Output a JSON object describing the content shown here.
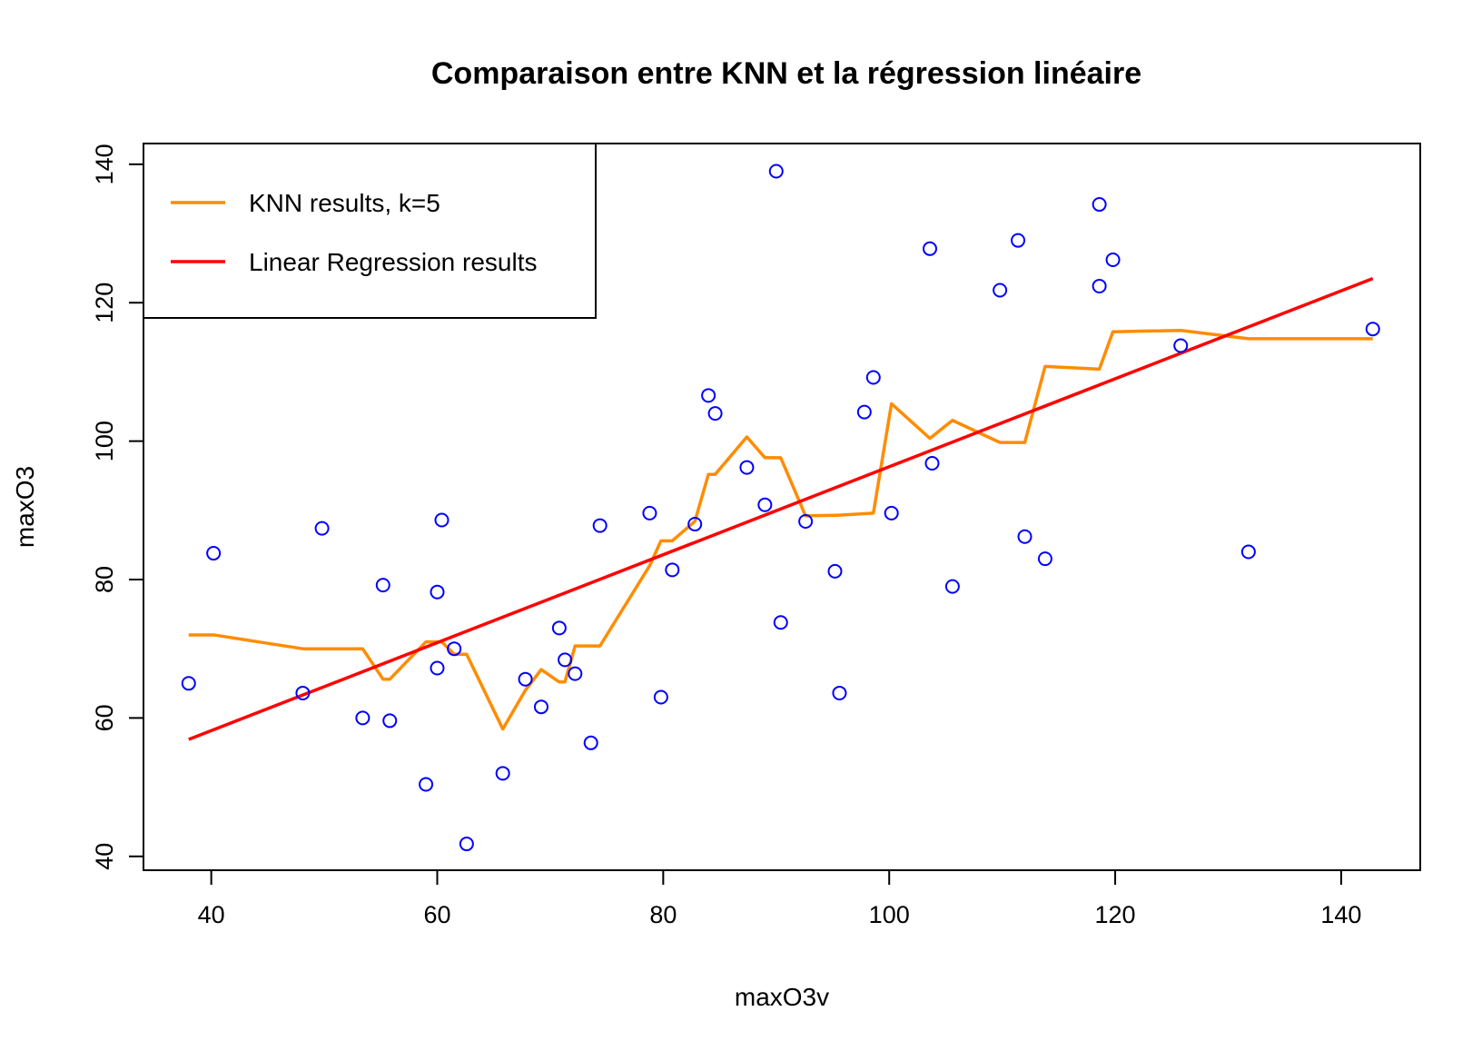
{
  "chart_data": {
    "type": "scatter",
    "title": "Comparaison entre KNN et la régression linéaire",
    "xlabel": "maxO3v",
    "ylabel": "maxO3",
    "xlim": [
      34,
      147
    ],
    "ylim": [
      38,
      143
    ],
    "xticks": [
      40,
      60,
      80,
      100,
      120,
      140
    ],
    "yticks": [
      40,
      60,
      80,
      100,
      120,
      140
    ],
    "grid": false,
    "legend_position": "top-left",
    "legend": [
      {
        "label": "KNN results, k=5",
        "color": "#ff8c00"
      },
      {
        "label": "Linear Regression results",
        "color": "#ff0000"
      }
    ],
    "colors": {
      "points": "#0000ff",
      "knn": "#ff8c00",
      "regression": "#ff0000",
      "axes": "#000000"
    },
    "points": [
      {
        "x": 38.0,
        "y": 65.0
      },
      {
        "x": 40.2,
        "y": 83.8
      },
      {
        "x": 48.1,
        "y": 63.6
      },
      {
        "x": 49.8,
        "y": 87.4
      },
      {
        "x": 53.4,
        "y": 60.0
      },
      {
        "x": 55.2,
        "y": 79.2
      },
      {
        "x": 55.8,
        "y": 59.6
      },
      {
        "x": 59.0,
        "y": 50.4
      },
      {
        "x": 60.0,
        "y": 78.2
      },
      {
        "x": 60.0,
        "y": 67.2
      },
      {
        "x": 60.4,
        "y": 88.6
      },
      {
        "x": 61.5,
        "y": 70.0
      },
      {
        "x": 62.6,
        "y": 41.8
      },
      {
        "x": 65.8,
        "y": 52.0
      },
      {
        "x": 67.8,
        "y": 65.6
      },
      {
        "x": 69.2,
        "y": 61.6
      },
      {
        "x": 70.8,
        "y": 73.0
      },
      {
        "x": 71.3,
        "y": 68.4
      },
      {
        "x": 72.2,
        "y": 66.4
      },
      {
        "x": 73.6,
        "y": 56.4
      },
      {
        "x": 74.4,
        "y": 87.8
      },
      {
        "x": 78.8,
        "y": 89.6
      },
      {
        "x": 79.8,
        "y": 63.0
      },
      {
        "x": 80.8,
        "y": 81.4
      },
      {
        "x": 82.8,
        "y": 88.0
      },
      {
        "x": 84.0,
        "y": 106.6
      },
      {
        "x": 84.6,
        "y": 104.0
      },
      {
        "x": 87.4,
        "y": 96.2
      },
      {
        "x": 89.0,
        "y": 90.8
      },
      {
        "x": 90.0,
        "y": 139.0
      },
      {
        "x": 90.4,
        "y": 73.8
      },
      {
        "x": 92.6,
        "y": 88.4
      },
      {
        "x": 95.2,
        "y": 81.2
      },
      {
        "x": 95.6,
        "y": 63.6
      },
      {
        "x": 97.8,
        "y": 104.2
      },
      {
        "x": 98.6,
        "y": 109.2
      },
      {
        "x": 100.2,
        "y": 89.6
      },
      {
        "x": 103.6,
        "y": 127.8
      },
      {
        "x": 103.8,
        "y": 96.8
      },
      {
        "x": 105.6,
        "y": 79.0
      },
      {
        "x": 109.8,
        "y": 121.8
      },
      {
        "x": 111.4,
        "y": 129.0
      },
      {
        "x": 112.0,
        "y": 86.2
      },
      {
        "x": 113.8,
        "y": 83.0
      },
      {
        "x": 118.6,
        "y": 134.2
      },
      {
        "x": 118.6,
        "y": 122.4
      },
      {
        "x": 119.8,
        "y": 126.2
      },
      {
        "x": 125.8,
        "y": 113.8
      },
      {
        "x": 131.8,
        "y": 84.0
      },
      {
        "x": 142.8,
        "y": 116.2
      }
    ],
    "series": [
      {
        "name": "KNN results, k=5",
        "type": "line",
        "x": [
          38.0,
          40.2,
          48.1,
          49.8,
          53.4,
          55.2,
          55.8,
          59.0,
          60.0,
          60.4,
          61.5,
          62.6,
          65.8,
          67.8,
          69.2,
          70.8,
          71.3,
          72.2,
          73.6,
          74.4,
          78.8,
          79.8,
          80.8,
          82.8,
          84.0,
          84.6,
          87.4,
          89.0,
          90.4,
          92.6,
          95.6,
          98.6,
          100.2,
          103.6,
          105.6,
          109.8,
          112.0,
          113.8,
          118.6,
          119.8,
          125.8,
          131.8,
          142.8
        ],
        "y": [
          72.0,
          72.0,
          70.0,
          70.0,
          70.0,
          65.6,
          65.6,
          71.0,
          71.0,
          71.0,
          69.2,
          69.2,
          58.4,
          64.0,
          67.0,
          65.2,
          65.2,
          70.4,
          70.4,
          70.4,
          82.0,
          85.6,
          85.6,
          88.4,
          95.2,
          95.2,
          100.6,
          97.6,
          97.6,
          89.2,
          89.3,
          89.6,
          105.4,
          100.4,
          103.0,
          99.8,
          99.8,
          110.8,
          110.4,
          115.8,
          116.0,
          114.8,
          114.8
        ]
      },
      {
        "name": "Linear Regression results",
        "type": "line",
        "x": [
          38.0,
          142.8
        ],
        "y": [
          56.9,
          123.5
        ]
      }
    ]
  }
}
